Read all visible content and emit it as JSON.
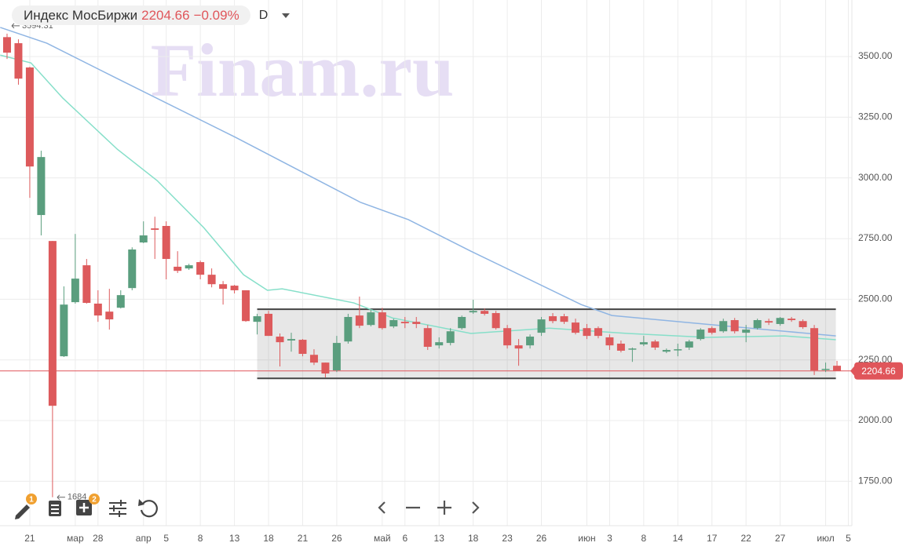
{
  "header": {
    "title": "Индекс МосБиржи",
    "price": "2204.66",
    "change": "−0.09%",
    "timeframe": "D"
  },
  "watermark": "Finam.ru",
  "toolbar": {
    "badges": [
      "1",
      "2"
    ]
  },
  "chart_data": {
    "type": "candlestick",
    "up_color": "#5a9e7e",
    "down_color": "#dd5a5c",
    "xlim": [
      -0.62,
      74.31
    ],
    "ylim": [
      1567,
      3733
    ],
    "grid": true,
    "yticks": [
      {
        "value": 1750,
        "label": "1750.00"
      },
      {
        "value": 2000,
        "label": "2000.00"
      },
      {
        "value": 2250,
        "label": "2250.00"
      },
      {
        "value": 2500,
        "label": "2500.00"
      },
      {
        "value": 2750,
        "label": "2750.00"
      },
      {
        "value": 3000,
        "label": "3000.00"
      },
      {
        "value": 3250,
        "label": "3250.00"
      },
      {
        "value": 3500,
        "label": "3500.00"
      }
    ],
    "xticks": [
      {
        "value": 2,
        "label": "21"
      },
      {
        "value": 6,
        "label": "мар"
      },
      {
        "value": 8,
        "label": "28"
      },
      {
        "value": 12,
        "label": "апр"
      },
      {
        "value": 14,
        "label": "5"
      },
      {
        "value": 17,
        "label": "8"
      },
      {
        "value": 20,
        "label": "13"
      },
      {
        "value": 23,
        "label": "18"
      },
      {
        "value": 26,
        "label": "21"
      },
      {
        "value": 29,
        "label": "26"
      },
      {
        "value": 33,
        "label": "май"
      },
      {
        "value": 35,
        "label": "6"
      },
      {
        "value": 38,
        "label": "13"
      },
      {
        "value": 41,
        "label": "18"
      },
      {
        "value": 44,
        "label": "23"
      },
      {
        "value": 47,
        "label": "26"
      },
      {
        "value": 51,
        "label": "июн"
      },
      {
        "value": 53,
        "label": "3"
      },
      {
        "value": 56,
        "label": "8"
      },
      {
        "value": 59,
        "label": "14"
      },
      {
        "value": 62,
        "label": "17"
      },
      {
        "value": 65,
        "label": "22"
      },
      {
        "value": 68,
        "label": "27"
      },
      {
        "value": 72,
        "label": "июл"
      },
      {
        "value": 74,
        "label": "5"
      }
    ],
    "candles": {
      "x": [
        0,
        1,
        2,
        3,
        4,
        5,
        6,
        7,
        8,
        9,
        10,
        11,
        12,
        13,
        14,
        15,
        16,
        17,
        18,
        19,
        20,
        21,
        22,
        23,
        24,
        25,
        26,
        27,
        28,
        29,
        30,
        31,
        32,
        33,
        34,
        35,
        36,
        37,
        38,
        39,
        40,
        41,
        42,
        43,
        44,
        45,
        46,
        47,
        48,
        49,
        50,
        51,
        52,
        53,
        54,
        55,
        56,
        57,
        58,
        59,
        60,
        61,
        62,
        63,
        64,
        65,
        66,
        67,
        68,
        69,
        70,
        71,
        72,
        73
      ],
      "open": [
        3580,
        3555,
        3455,
        2847,
        2740,
        2265,
        2488,
        2640,
        2482,
        2449,
        2465,
        2546,
        2734,
        2792,
        2802,
        2634,
        2627,
        2653,
        2601,
        2562,
        2556,
        2537,
        2407,
        2440,
        2346,
        2330,
        2333,
        2271,
        2239,
        2207,
        2326,
        2433,
        2394,
        2446,
        2388,
        2407,
        2407,
        2381,
        2310,
        2320,
        2381,
        2446,
        2452,
        2443,
        2381,
        2310,
        2310,
        2362,
        2430,
        2430,
        2404,
        2381,
        2381,
        2343,
        2317,
        2294,
        2314,
        2326,
        2284,
        2291,
        2301,
        2336,
        2381,
        2368,
        2414,
        2362,
        2381,
        2410,
        2398,
        2420,
        2410,
        2381,
        2210,
        2226
      ],
      "high": [
        3594.31,
        3571,
        3458,
        3112,
        2740,
        2553,
        2769,
        2666,
        2537,
        2543,
        2537,
        2714,
        2821,
        2840,
        2821,
        2698,
        2646,
        2659,
        2627,
        2575,
        2559,
        2537,
        2440,
        2452,
        2359,
        2362,
        2336,
        2294,
        2239,
        2349,
        2440,
        2511,
        2459,
        2465,
        2420,
        2427,
        2427,
        2394,
        2343,
        2381,
        2433,
        2498,
        2462,
        2452,
        2394,
        2336,
        2355,
        2427,
        2443,
        2440,
        2420,
        2398,
        2388,
        2355,
        2330,
        2301,
        2349,
        2333,
        2297,
        2317,
        2333,
        2381,
        2388,
        2420,
        2423,
        2394,
        2420,
        2420,
        2427,
        2427,
        2417,
        2394,
        2239,
        2246
      ],
      "low": [
        3490,
        3384,
        2918,
        2763,
        1684,
        2262,
        2482,
        2482,
        2407,
        2375,
        2462,
        2537,
        2731,
        2666,
        2582,
        2608,
        2621,
        2582,
        2549,
        2478,
        2524,
        2407,
        2355,
        2349,
        2223,
        2284,
        2265,
        2229,
        2178,
        2200,
        2317,
        2381,
        2388,
        2375,
        2381,
        2381,
        2381,
        2291,
        2297,
        2310,
        2375,
        2440,
        2433,
        2375,
        2297,
        2226,
        2297,
        2349,
        2401,
        2398,
        2355,
        2336,
        2339,
        2291,
        2281,
        2242,
        2307,
        2291,
        2278,
        2265,
        2291,
        2330,
        2355,
        2362,
        2359,
        2323,
        2375,
        2394,
        2391,
        2407,
        2378,
        2188,
        2200,
        2204
      ],
      "close": [
        3516,
        3409,
        3047,
        3086,
        2061,
        2478,
        2585,
        2485,
        2433,
        2417,
        2517,
        2705,
        2763,
        2786,
        2666,
        2617,
        2640,
        2601,
        2562,
        2543,
        2537,
        2410,
        2430,
        2349,
        2323,
        2336,
        2275,
        2239,
        2194,
        2320,
        2427,
        2391,
        2446,
        2381,
        2414,
        2401,
        2398,
        2304,
        2323,
        2368,
        2427,
        2452,
        2440,
        2381,
        2310,
        2297,
        2346,
        2417,
        2410,
        2407,
        2362,
        2349,
        2349,
        2310,
        2288,
        2297,
        2323,
        2301,
        2291,
        2294,
        2326,
        2375,
        2362,
        2410,
        2368,
        2375,
        2414,
        2404,
        2423,
        2414,
        2385,
        2207,
        2213,
        2204.66
      ]
    },
    "overlays": [
      {
        "color": "#8fb5e3",
        "x": [
          -0.6,
          3.5,
          9.7,
          20.1,
          31.1,
          35.3,
          40.8,
          50.5,
          53.2,
          61.5,
          68.4,
          72.9
        ],
        "values": [
          3620,
          3555,
          3409,
          3167,
          2899,
          2828,
          2698,
          2478,
          2433,
          2397,
          2368,
          2349
        ]
      },
      {
        "color": "#86dfc9",
        "x": [
          -0.6,
          2.1,
          4.9,
          9.7,
          13.2,
          17.3,
          20.8,
          22.9,
          24.2,
          30.5,
          33.9,
          40.8,
          47.7,
          54.6,
          61.5,
          68.4,
          72.9
        ],
        "values": [
          3506,
          3474,
          3329,
          3118,
          2989,
          2795,
          2601,
          2537,
          2543,
          2485,
          2423,
          2359,
          2381,
          2359,
          2343,
          2349,
          2333
        ]
      }
    ],
    "range_box": {
      "x_start": 22,
      "x_end": 72.9,
      "low": 2174,
      "high": 2459
    },
    "last_price": 2204.66,
    "annotations": [
      {
        "x": 0,
        "value": 3594.31
      },
      {
        "x": 4,
        "value": 1684
      }
    ]
  }
}
